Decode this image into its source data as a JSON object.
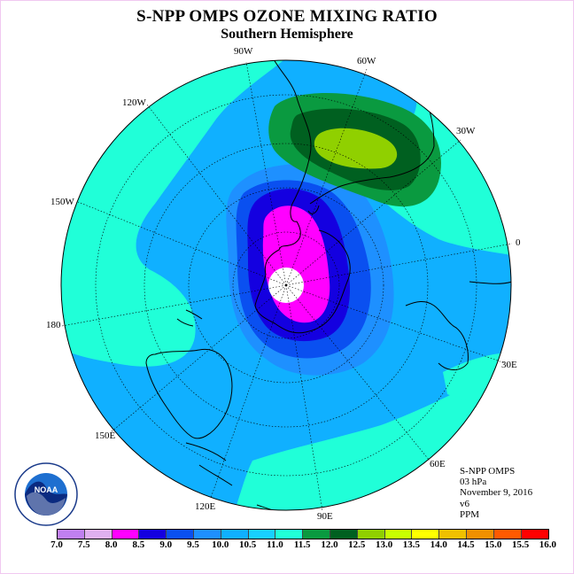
{
  "title": "S-NPP OMPS OZONE MIXING RATIO",
  "subtitle": "Southern Hemisphere",
  "longitude_labels": {
    "w90": "90W",
    "w60": "60W",
    "w30": "30W",
    "e0": "0",
    "w120": "120W",
    "w150": "150W",
    "w180": "180",
    "e30": "30E",
    "e60": "60E",
    "e90": "90E",
    "e120": "120E",
    "e150": "150E"
  },
  "info": {
    "instrument": "S-NPP OMPS",
    "level": "03 hPa",
    "date": "November 9, 2016",
    "version": "v6",
    "units": "PPM"
  },
  "logo_text": "NOAA",
  "colorbar": {
    "ticks": [
      "7.0",
      "7.5",
      "8.0",
      "8.5",
      "9.0",
      "9.5",
      "10.0",
      "10.5",
      "11.0",
      "11.5",
      "12.0",
      "12.5",
      "13.0",
      "13.5",
      "14.0",
      "14.5",
      "15.0",
      "15.5",
      "16.0"
    ],
    "colors": [
      "#c080f0",
      "#e0b0f0",
      "#ff00ff",
      "#1400e0",
      "#0a50f0",
      "#1e90ff",
      "#10b0ff",
      "#18d0ff",
      "#20ffd8",
      "#0a9a40",
      "#006020",
      "#90d000",
      "#c8ff00",
      "#ffff00",
      "#f0c000",
      "#f09000",
      "#ff5a00",
      "#ff0000",
      "#b06040"
    ]
  },
  "map_colors": {
    "background_level": "#10b0ff",
    "cyan_level": "#20ffd8",
    "blue_mid": "#1e90ff",
    "blue_dark": "#0a50f0",
    "navy": "#1400e0",
    "magenta": "#ff00ff",
    "green_dark": "#006020",
    "green_mid": "#0a9a40",
    "lime": "#90d000"
  }
}
